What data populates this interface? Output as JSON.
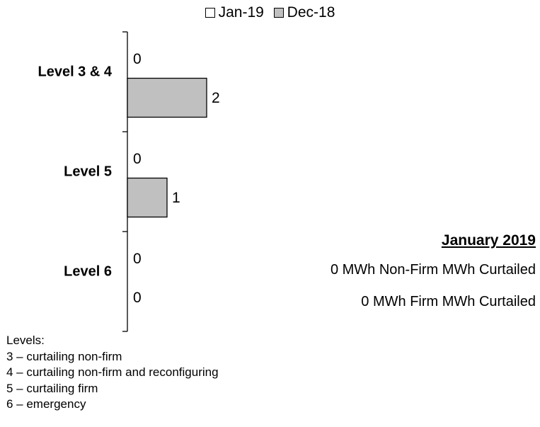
{
  "chart_data": {
    "type": "bar",
    "orientation": "horizontal",
    "categories": [
      "Level 3 & 4",
      "Level 5",
      "Level 6"
    ],
    "series": [
      {
        "name": "Jan-19",
        "values": [
          0,
          0,
          0
        ],
        "color": "#ffffff"
      },
      {
        "name": "Dec-18",
        "values": [
          2,
          1,
          0
        ],
        "color": "#c0c0c0"
      }
    ],
    "xlim": [
      0,
      10
    ],
    "grid": false,
    "legend_position": "top"
  },
  "summary": {
    "heading": "January 2019",
    "non_firm": "0  MWh Non-Firm MWh Curtailed",
    "firm": "0 MWh Firm MWh Curtailed"
  },
  "notes": {
    "title": "Levels:",
    "items": [
      "3 – curtailing non-firm",
      "4 – curtailing non-firm and reconfiguring",
      "5 – curtailing firm",
      "6 – emergency"
    ]
  },
  "colors": {
    "bar_fill": "#c0c0c0",
    "outline": "#000000"
  }
}
